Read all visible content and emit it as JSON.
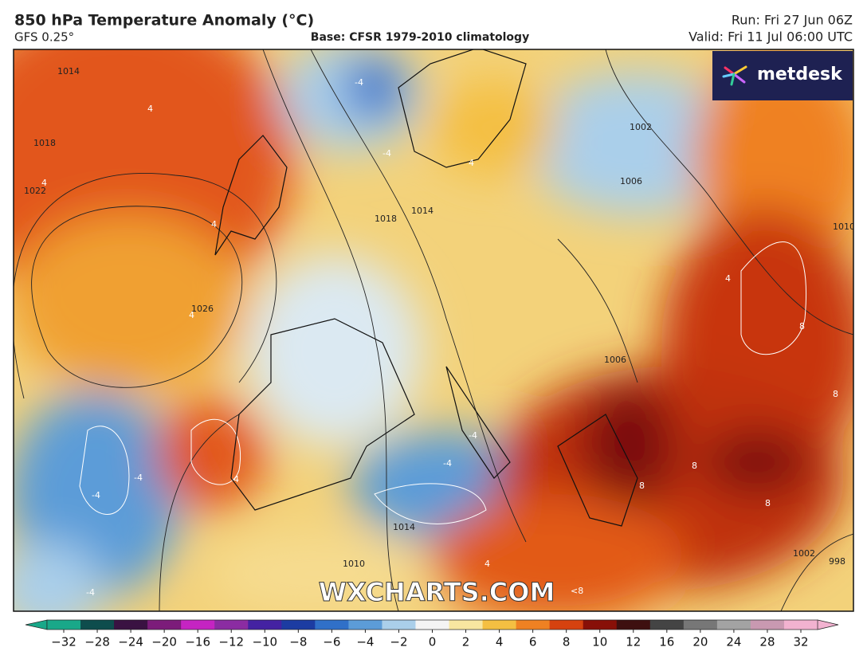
{
  "header": {
    "title": "850 hPa Temperature Anomaly (°C)",
    "model": "GFS 0.25°",
    "base": "Base: CFSR 1979-2010 climatology",
    "run": "Run: Fri 27 Jun 06Z",
    "valid": "Valid: Fri 11 Jul 06:00 UTC"
  },
  "logo": "metdesk",
  "watermark": "WXCHARTS.COM",
  "map": {
    "isobar_labels": [
      "1014",
      "1018",
      "1022",
      "1026",
      "1018",
      "1014",
      "1002",
      "1006",
      "1006",
      "1010",
      "1010",
      "1002",
      "998",
      "1014"
    ],
    "anomaly_labels": [
      "4",
      "-4",
      "4",
      "4",
      "4",
      "4",
      "-4",
      "4",
      "4",
      "8",
      "8",
      "-4",
      "-4",
      "-4",
      "4",
      "-4",
      "8",
      "8",
      "8",
      "-4",
      "<8"
    ]
  },
  "colorbar": {
    "ticks": [
      {
        "value": -32,
        "label": "−32"
      },
      {
        "value": -28,
        "label": "−28"
      },
      {
        "value": -24,
        "label": "−24"
      },
      {
        "value": -20,
        "label": "−20"
      },
      {
        "value": -16,
        "label": "−16"
      },
      {
        "value": -12,
        "label": "−12"
      },
      {
        "value": -10,
        "label": "−10"
      },
      {
        "value": -8,
        "label": "−8"
      },
      {
        "value": -6,
        "label": "−6"
      },
      {
        "value": -4,
        "label": "−4"
      },
      {
        "value": -2,
        "label": "−2"
      },
      0,
      2,
      4,
      6,
      8,
      10,
      12,
      16,
      20,
      24,
      28,
      32
    ],
    "colors": [
      "#19a889",
      "#0e4d4d",
      "#3a1242",
      "#7c1c7a",
      "#c524c2",
      "#8b2ca2",
      "#4422a2",
      "#1c3ca2",
      "#3070c8",
      "#5c9cd8",
      "#aacfea",
      "#f4f4f4",
      "#f8e6a0",
      "#f4bf42",
      "#ef8122",
      "#d6420f",
      "#881008",
      "#3e1010",
      "#444",
      "#777",
      "#a3a3a3",
      "#c999b1",
      "#f2b2d0"
    ]
  }
}
